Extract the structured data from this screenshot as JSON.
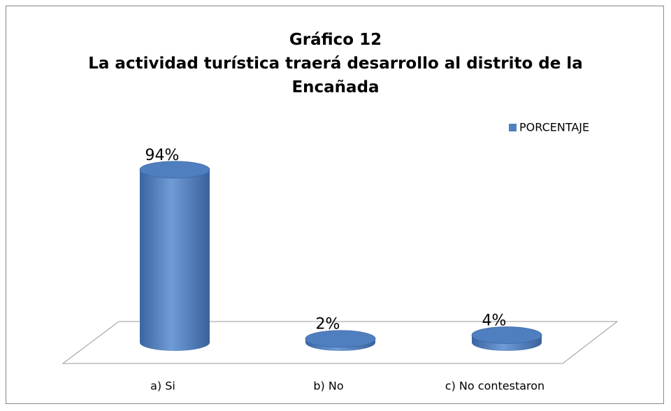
{
  "chart_data": {
    "type": "bar",
    "title": "Gráfico 12",
    "subtitle": "La actividad turística traerá desarrollo al distrito de la Encañada",
    "categories": [
      "a) Si",
      "b) No",
      "c) No contestaron"
    ],
    "series": [
      {
        "name": "PORCENTAJE",
        "color": "#4f81bd",
        "values": [
          94,
          2,
          4
        ],
        "value_labels": [
          "94%",
          "2%",
          "4%"
        ]
      }
    ],
    "legend": "top-right"
  }
}
